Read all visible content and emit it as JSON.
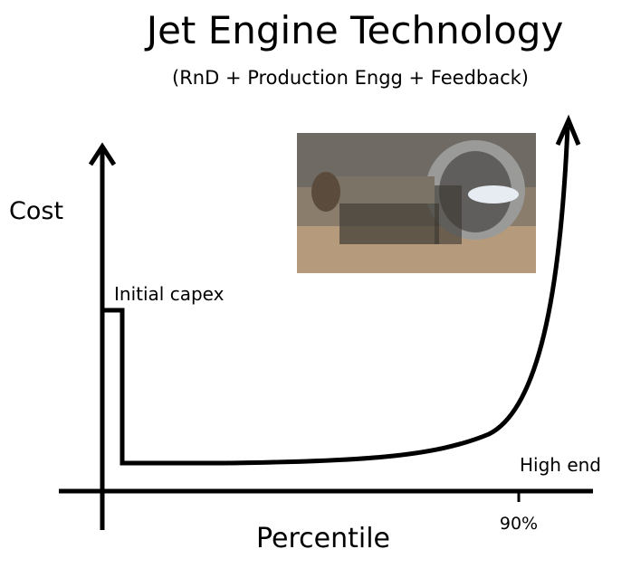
{
  "header": {
    "title": "Jet Engine Technology",
    "subtitle": "(RnD + Production Engg + Feedback)"
  },
  "axes": {
    "y_label": "Cost",
    "x_label": "Percentile",
    "x_tick": "90%"
  },
  "annotations": {
    "start": "Initial capex",
    "end": "High end"
  }
}
